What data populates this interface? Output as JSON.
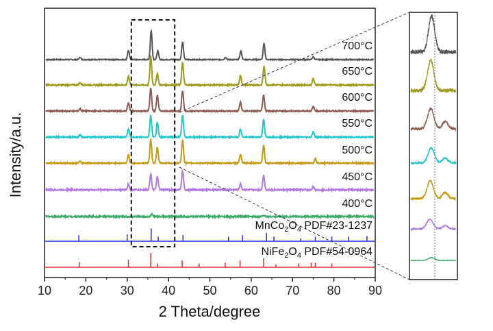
{
  "chart_data": {
    "type": "line",
    "xlabel": "2 Theta/degree",
    "ylabel": "Intensity/a.u.",
    "xlim": [
      10,
      90
    ],
    "xticks": [
      10,
      20,
      30,
      40,
      50,
      60,
      70,
      80,
      90
    ],
    "yticks_shown": false,
    "grid": false,
    "stacked_offset": true,
    "zoom_box_x": [
      31,
      41.5
    ],
    "inset_zoom": true,
    "series": [
      {
        "name": "700°C",
        "color": "#555555",
        "peaks": [
          [
            18.6,
            0.08
          ],
          [
            30.3,
            0.32
          ],
          [
            35.8,
            1.0
          ],
          [
            37.4,
            0.3
          ],
          [
            43.4,
            0.62
          ],
          [
            53.8,
            0.08
          ],
          [
            57.5,
            0.3
          ],
          [
            63.1,
            0.55
          ],
          [
            75.0,
            0.1
          ]
        ],
        "noise": 0.03
      },
      {
        "name": "650°C",
        "color": "#9a9a18",
        "peaks": [
          [
            18.6,
            0.08
          ],
          [
            30.3,
            0.3
          ],
          [
            35.7,
            1.0
          ],
          [
            37.3,
            0.4
          ],
          [
            43.4,
            0.78
          ],
          [
            57.4,
            0.32
          ],
          [
            63.1,
            0.65
          ],
          [
            75.0,
            0.22
          ]
        ],
        "noise": 0.04
      },
      {
        "name": "600°C",
        "color": "#8c5a52",
        "peaks": [
          [
            18.6,
            0.07
          ],
          [
            30.3,
            0.28
          ],
          [
            35.7,
            0.8
          ],
          [
            37.3,
            0.55
          ],
          [
            43.4,
            0.7
          ],
          [
            57.4,
            0.3
          ],
          [
            63.0,
            0.55
          ],
          [
            75.0,
            0.15
          ]
        ],
        "noise": 0.04
      },
      {
        "name": "550°C",
        "color": "#1fc8c8",
        "peaks": [
          [
            18.6,
            0.07
          ],
          [
            30.3,
            0.28
          ],
          [
            35.7,
            0.75
          ],
          [
            37.3,
            0.5
          ],
          [
            43.4,
            0.75
          ],
          [
            57.4,
            0.28
          ],
          [
            63.0,
            0.6
          ],
          [
            75.0,
            0.18
          ]
        ],
        "noise": 0.04
      },
      {
        "name": "500°C",
        "color": "#c49a14",
        "peaks": [
          [
            18.6,
            0.06
          ],
          [
            30.3,
            0.28
          ],
          [
            35.7,
            0.82
          ],
          [
            37.3,
            0.55
          ],
          [
            43.4,
            0.8
          ],
          [
            57.4,
            0.3
          ],
          [
            63.0,
            0.62
          ],
          [
            75.5,
            0.15
          ]
        ],
        "noise": 0.04
      },
      {
        "name": "450°C",
        "color": "#b07ae0",
        "peaks": [
          [
            30.3,
            0.2
          ],
          [
            35.7,
            0.55
          ],
          [
            37.3,
            0.45
          ],
          [
            43.4,
            0.65
          ],
          [
            57.4,
            0.2
          ],
          [
            63.0,
            0.5
          ],
          [
            75.0,
            0.1
          ]
        ],
        "noise": 0.05
      },
      {
        "name": "400°C",
        "color": "#3aaa6a",
        "peaks": [
          [
            36.0,
            0.08
          ],
          [
            63.0,
            0.05
          ]
        ],
        "noise": 0.05
      }
    ],
    "references": [
      {
        "label_formula": "MnCo",
        "sub1": "2",
        "mid": "O",
        "sub2": "4",
        "pdf": "PDF#23-1237",
        "color": "#2a2ae0",
        "lines": [
          [
            18.3,
            0.4
          ],
          [
            30.0,
            0.45
          ],
          [
            35.8,
            0.85
          ],
          [
            37.5,
            0.3
          ],
          [
            43.5,
            0.4
          ],
          [
            54.5,
            0.3
          ],
          [
            57.9,
            0.4
          ],
          [
            63.7,
            0.55
          ],
          [
            65.5,
            0.3
          ],
          [
            72.0,
            0.2
          ],
          [
            75.5,
            0.3
          ],
          [
            79.5,
            0.3
          ],
          [
            83.5,
            0.3
          ],
          [
            88.0,
            0.35
          ]
        ]
      },
      {
        "label_formula": "NiFe",
        "sub1": "2",
        "mid": "O",
        "sub2": "4",
        "pdf": "PDF#54-0964",
        "color": "#e03030",
        "lines": [
          [
            18.4,
            0.35
          ],
          [
            30.3,
            0.5
          ],
          [
            35.7,
            0.95
          ],
          [
            37.3,
            0.25
          ],
          [
            43.3,
            0.45
          ],
          [
            47.4,
            0.25
          ],
          [
            53.7,
            0.3
          ],
          [
            57.3,
            0.45
          ],
          [
            63.0,
            0.6
          ],
          [
            66.0,
            0.2
          ],
          [
            71.5,
            0.25
          ],
          [
            74.5,
            0.3
          ],
          [
            75.5,
            0.3
          ],
          [
            79.5,
            0.25
          ]
        ]
      }
    ]
  }
}
